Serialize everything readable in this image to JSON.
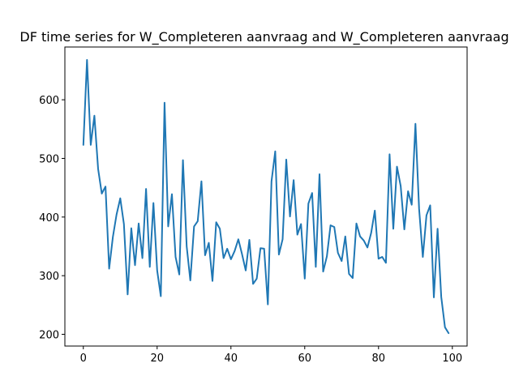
{
  "chart_data": {
    "type": "line",
    "title": "DF time series for W_Completeren aanvraag and W_Completeren aanvraag",
    "xlabel": "",
    "ylabel": "",
    "xlim": [
      -5,
      104
    ],
    "ylim": [
      180,
      690
    ],
    "xticks": [
      0,
      20,
      40,
      60,
      80,
      100
    ],
    "yticks": [
      200,
      300,
      400,
      500,
      600
    ],
    "grid": false,
    "series": [
      {
        "color": "#1f77b4",
        "x": [
          0,
          1,
          2,
          3,
          4,
          5,
          6,
          7,
          8,
          9,
          10,
          11,
          12,
          13,
          14,
          15,
          16,
          17,
          18,
          19,
          20,
          21,
          22,
          23,
          24,
          25,
          26,
          27,
          28,
          29,
          30,
          31,
          32,
          33,
          34,
          35,
          36,
          37,
          38,
          39,
          40,
          41,
          42,
          43,
          44,
          45,
          46,
          47,
          48,
          49,
          50,
          51,
          52,
          53,
          54,
          55,
          56,
          57,
          58,
          59,
          60,
          61,
          62,
          63,
          64,
          65,
          66,
          67,
          68,
          69,
          70,
          71,
          72,
          73,
          74,
          75,
          76,
          77,
          78,
          79,
          80,
          81,
          82,
          83,
          84,
          85,
          86,
          87,
          88,
          89,
          90,
          91,
          92,
          93,
          94,
          95,
          96,
          97,
          98,
          99
        ],
        "values": [
          523,
          668,
          523,
          573,
          482,
          440,
          452,
          312,
          366,
          404,
          432,
          388,
          268,
          381,
          318,
          389,
          330,
          448,
          315,
          424,
          309,
          265,
          595,
          384,
          439,
          332,
          302,
          497,
          350,
          292,
          384,
          393,
          461,
          335,
          356,
          291,
          391,
          380,
          330,
          346,
          328,
          342,
          362,
          337,
          309,
          361,
          286,
          295,
          347,
          346,
          251,
          461,
          512,
          336,
          362,
          498,
          401,
          463,
          370,
          388,
          295,
          423,
          441,
          315,
          473,
          307,
          333,
          386,
          383,
          339,
          325,
          367,
          303,
          296,
          389,
          367,
          360,
          348,
          373,
          411,
          329,
          332,
          322,
          507,
          380,
          486,
          453,
          379,
          444,
          421,
          559,
          414,
          332,
          403,
          420,
          263,
          380,
          264,
          212,
          202
        ]
      }
    ]
  }
}
